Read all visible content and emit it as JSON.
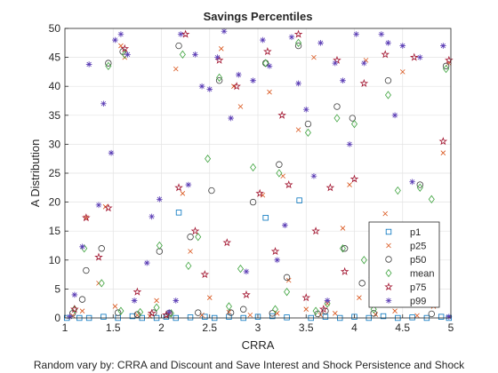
{
  "chart_data": {
    "type": "scatter",
    "title": "Savings Percentiles",
    "xlabel": "CRRA",
    "ylabel": "A Distribution",
    "caption": "Random vary by: CRRA and Discount and Save Interest and Shock Persistence and Shock",
    "xlim": [
      1,
      5
    ],
    "ylim": [
      0,
      50
    ],
    "x_ticks": [
      1,
      1.5,
      2,
      2.5,
      3,
      3.5,
      4,
      4.5,
      5
    ],
    "x_tick_labels": [
      "1",
      "1.5",
      "2",
      "2.5",
      "3",
      "3.5",
      "4",
      "4.5",
      "5"
    ],
    "y_ticks": [
      0,
      5,
      10,
      15,
      20,
      25,
      30,
      35,
      40,
      45,
      50
    ],
    "y_tick_labels": [
      "0",
      "5",
      "10",
      "15",
      "20",
      "25",
      "30",
      "35",
      "40",
      "45",
      "50"
    ],
    "grid": true,
    "legend_position": "lower-right",
    "series": [
      {
        "name": "p1",
        "marker": "square",
        "color": "#0072BD",
        "points": [
          [
            1.02,
            0
          ],
          [
            1.15,
            0
          ],
          [
            1.25,
            0
          ],
          [
            1.4,
            0.2
          ],
          [
            1.55,
            0
          ],
          [
            1.7,
            0.3
          ],
          [
            1.8,
            0
          ],
          [
            1.95,
            0
          ],
          [
            2.05,
            0.2
          ],
          [
            2.15,
            0
          ],
          [
            2.18,
            18.2
          ],
          [
            2.3,
            0.1
          ],
          [
            2.45,
            0.2
          ],
          [
            2.55,
            0
          ],
          [
            2.7,
            0.2
          ],
          [
            2.85,
            0
          ],
          [
            3.0,
            0.2
          ],
          [
            3.08,
            17.3
          ],
          [
            3.15,
            0.3
          ],
          [
            3.3,
            0.1
          ],
          [
            3.43,
            20.3
          ],
          [
            3.55,
            0
          ],
          [
            3.7,
            0.2
          ],
          [
            3.85,
            0
          ],
          [
            4.0,
            0.2
          ],
          [
            4.15,
            0
          ],
          [
            4.3,
            0.3
          ],
          [
            4.45,
            0
          ],
          [
            4.6,
            0.1
          ],
          [
            4.75,
            0
          ],
          [
            4.9,
            0.2
          ],
          [
            4.98,
            0
          ]
        ]
      },
      {
        "name": "p25",
        "marker": "x",
        "color": "#D95319",
        "points": [
          [
            1.08,
            0.4
          ],
          [
            1.18,
            1.2
          ],
          [
            1.22,
            17.3
          ],
          [
            1.35,
            6.0
          ],
          [
            1.42,
            19.2
          ],
          [
            1.52,
            2.0
          ],
          [
            1.58,
            47.0
          ],
          [
            1.62,
            45.0
          ],
          [
            1.75,
            0.5
          ],
          [
            1.88,
            0.3
          ],
          [
            1.95,
            3.0
          ],
          [
            2.08,
            0.6
          ],
          [
            2.15,
            43.0
          ],
          [
            2.22,
            21.5
          ],
          [
            2.3,
            11.5
          ],
          [
            2.42,
            0.5
          ],
          [
            2.5,
            3.5
          ],
          [
            2.62,
            46.5
          ],
          [
            2.7,
            1.0
          ],
          [
            2.75,
            40.0
          ],
          [
            2.82,
            36.5
          ],
          [
            2.92,
            0.5
          ],
          [
            3.05,
            21.2
          ],
          [
            3.12,
            39.0
          ],
          [
            3.2,
            0.8
          ],
          [
            3.26,
            24.5
          ],
          [
            3.32,
            6.5
          ],
          [
            3.42,
            32.5
          ],
          [
            3.5,
            1.5
          ],
          [
            3.58,
            45.0
          ],
          [
            3.65,
            0.5
          ],
          [
            3.72,
            2.5
          ],
          [
            3.8,
            0.8
          ],
          [
            3.88,
            15.5
          ],
          [
            3.95,
            23.0
          ],
          [
            4.05,
            3.5
          ],
          [
            4.12,
            44.5
          ],
          [
            4.22,
            0.6
          ],
          [
            4.32,
            18.0
          ],
          [
            4.42,
            1.2
          ],
          [
            4.5,
            42.5
          ],
          [
            4.58,
            12.0
          ],
          [
            4.65,
            0.4
          ],
          [
            4.72,
            6.5
          ],
          [
            4.82,
            2.0
          ],
          [
            4.92,
            28.5
          ],
          [
            4.98,
            44.0
          ]
        ]
      },
      {
        "name": "p50",
        "marker": "circle",
        "color": "#404040",
        "points": [
          [
            1.08,
            0.8
          ],
          [
            1.18,
            3.2
          ],
          [
            1.22,
            8.2
          ],
          [
            1.38,
            12.0
          ],
          [
            1.45,
            44.0
          ],
          [
            1.55,
            0.9
          ],
          [
            1.6,
            46.0
          ],
          [
            1.75,
            0.6
          ],
          [
            1.92,
            0.9
          ],
          [
            1.98,
            11.5
          ],
          [
            2.08,
            0.8
          ],
          [
            2.18,
            47.0
          ],
          [
            2.3,
            14.0
          ],
          [
            2.38,
            0.9
          ],
          [
            2.52,
            22.0
          ],
          [
            2.6,
            41.0
          ],
          [
            2.72,
            0.9
          ],
          [
            2.85,
            1.5
          ],
          [
            2.95,
            20.0
          ],
          [
            3.08,
            44.0
          ],
          [
            3.15,
            0.8
          ],
          [
            3.22,
            26.5
          ],
          [
            3.3,
            7.0
          ],
          [
            3.42,
            47.0
          ],
          [
            3.52,
            33.5
          ],
          [
            3.62,
            0.7
          ],
          [
            3.7,
            1.2
          ],
          [
            3.82,
            36.5
          ],
          [
            3.9,
            12.0
          ],
          [
            3.98,
            34.5
          ],
          [
            4.08,
            6.0
          ],
          [
            4.2,
            0.8
          ],
          [
            4.35,
            41.0
          ],
          [
            4.45,
            3.5
          ],
          [
            4.55,
            16.0
          ],
          [
            4.68,
            23.0
          ],
          [
            4.8,
            0.7
          ],
          [
            4.95,
            43.5
          ]
        ]
      },
      {
        "name": "mean",
        "marker": "diamond",
        "color": "#3DA33D",
        "points": [
          [
            1.1,
            1.5
          ],
          [
            1.2,
            12.0
          ],
          [
            1.38,
            6.0
          ],
          [
            1.45,
            43.5
          ],
          [
            1.58,
            1.2
          ],
          [
            1.62,
            45.5
          ],
          [
            1.78,
            1.0
          ],
          [
            1.95,
            1.8
          ],
          [
            1.98,
            12.5
          ],
          [
            2.1,
            0.8
          ],
          [
            2.22,
            45.5
          ],
          [
            2.28,
            9.0
          ],
          [
            2.38,
            14.0
          ],
          [
            2.48,
            27.5
          ],
          [
            2.6,
            41.5
          ],
          [
            2.7,
            2.0
          ],
          [
            2.82,
            8.5
          ],
          [
            2.95,
            26.0
          ],
          [
            3.08,
            44.0
          ],
          [
            3.18,
            1.5
          ],
          [
            3.22,
            25.0
          ],
          [
            3.3,
            4.5
          ],
          [
            3.42,
            47.5
          ],
          [
            3.52,
            32.0
          ],
          [
            3.6,
            1.2
          ],
          [
            3.72,
            2.5
          ],
          [
            3.82,
            34.5
          ],
          [
            3.88,
            12.0
          ],
          [
            4.0,
            33.5
          ],
          [
            4.1,
            10.0
          ],
          [
            4.2,
            1.5
          ],
          [
            4.35,
            38.5
          ],
          [
            4.45,
            22.0
          ],
          [
            4.55,
            15.5
          ],
          [
            4.68,
            22.5
          ],
          [
            4.8,
            20.5
          ],
          [
            4.95,
            43.0
          ]
        ]
      },
      {
        "name": "p75",
        "marker": "pentagram",
        "color": "#A2142F",
        "points": [
          [
            1.1,
            1.5
          ],
          [
            1.22,
            17.3
          ],
          [
            1.35,
            10.5
          ],
          [
            1.45,
            19.0
          ],
          [
            1.62,
            46.5
          ],
          [
            1.75,
            4.5
          ],
          [
            1.9,
            0.8
          ],
          [
            2.05,
            0.5
          ],
          [
            2.18,
            22.5
          ],
          [
            2.25,
            49.0
          ],
          [
            2.35,
            15.0
          ],
          [
            2.45,
            7.5
          ],
          [
            2.6,
            44.5
          ],
          [
            2.68,
            13.0
          ],
          [
            2.78,
            40.0
          ],
          [
            2.88,
            4.0
          ],
          [
            3.02,
            21.5
          ],
          [
            3.1,
            46.0
          ],
          [
            3.18,
            11.5
          ],
          [
            3.25,
            35.0
          ],
          [
            3.32,
            23.0
          ],
          [
            3.42,
            49.0
          ],
          [
            3.5,
            3.5
          ],
          [
            3.6,
            15.0
          ],
          [
            3.68,
            1.5
          ],
          [
            3.75,
            22.5
          ],
          [
            3.82,
            44.5
          ],
          [
            3.9,
            8.0
          ],
          [
            4.0,
            24.0
          ],
          [
            4.1,
            40.5
          ],
          [
            4.22,
            5.5
          ],
          [
            4.32,
            45.5
          ],
          [
            4.42,
            9.5
          ],
          [
            4.52,
            12.0
          ],
          [
            4.62,
            45.0
          ],
          [
            4.72,
            8.5
          ],
          [
            4.82,
            3.5
          ],
          [
            4.92,
            30.5
          ],
          [
            4.98,
            44.5
          ]
        ]
      },
      {
        "name": "p99",
        "marker": "asterisk",
        "color": "#5B3DB5",
        "points": [
          [
            1.05,
            0.2
          ],
          [
            1.1,
            4.0
          ],
          [
            1.18,
            12.3
          ],
          [
            1.25,
            43.8
          ],
          [
            1.35,
            19.5
          ],
          [
            1.4,
            37.0
          ],
          [
            1.48,
            28.5
          ],
          [
            1.52,
            48.0
          ],
          [
            1.58,
            49.0
          ],
          [
            1.65,
            45.5
          ],
          [
            1.72,
            3.0
          ],
          [
            1.85,
            9.5
          ],
          [
            1.9,
            17.5
          ],
          [
            1.98,
            20.5
          ],
          [
            2.08,
            1.0
          ],
          [
            2.15,
            3.0
          ],
          [
            2.2,
            49.0
          ],
          [
            2.28,
            23.0
          ],
          [
            2.35,
            45.5
          ],
          [
            2.42,
            40.0
          ],
          [
            2.5,
            39.5
          ],
          [
            2.58,
            45.0
          ],
          [
            2.65,
            49.5
          ],
          [
            2.72,
            34.5
          ],
          [
            2.8,
            42.0
          ],
          [
            2.88,
            8.0
          ],
          [
            2.95,
            41.0
          ],
          [
            3.05,
            48.0
          ],
          [
            3.12,
            43.5
          ],
          [
            3.2,
            10.0
          ],
          [
            3.28,
            16.0
          ],
          [
            3.35,
            48.5
          ],
          [
            3.42,
            40.5
          ],
          [
            3.5,
            36.0
          ],
          [
            3.58,
            24.5
          ],
          [
            3.65,
            47.5
          ],
          [
            3.72,
            3.0
          ],
          [
            3.8,
            44.0
          ],
          [
            3.88,
            41.0
          ],
          [
            3.95,
            30.0
          ],
          [
            4.02,
            49.0
          ],
          [
            4.1,
            44.0
          ],
          [
            4.18,
            7.0
          ],
          [
            4.28,
            49.0
          ],
          [
            4.35,
            47.5
          ],
          [
            4.42,
            35.0
          ],
          [
            4.5,
            47.0
          ],
          [
            4.6,
            23.5
          ],
          [
            4.68,
            45.0
          ],
          [
            4.75,
            16.0
          ],
          [
            4.85,
            5.0
          ],
          [
            4.92,
            47.0
          ],
          [
            4.98,
            0.2
          ]
        ]
      }
    ]
  }
}
